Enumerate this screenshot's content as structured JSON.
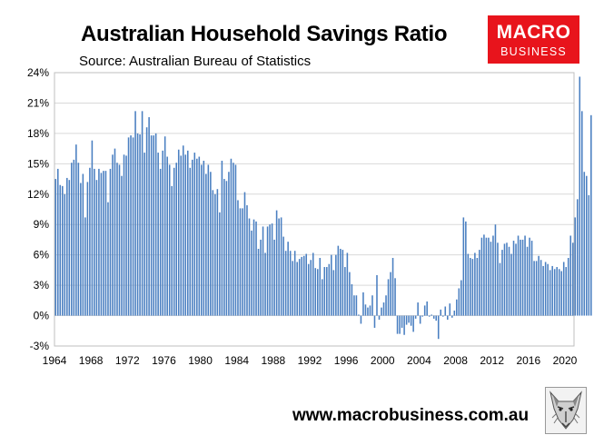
{
  "title": "Australian Household Savings Ratio",
  "subtitle": "Source: Australian Bureau of Statistics",
  "logo": {
    "line1": "MACRO",
    "line2": "BUSINESS",
    "color": "#e8141c"
  },
  "website": "www.macrobusiness.com.au",
  "mascot_icon": "wolf-icon",
  "colors": {
    "bar": "#4a7fc1",
    "grid": "#d9d9d9",
    "plot_border": "#bfbfbf"
  },
  "chart_data": {
    "type": "bar",
    "title": "Australian Household Savings Ratio",
    "xlabel": "",
    "ylabel": "",
    "grid": true,
    "x_start": 1964.0,
    "x_step": 0.25,
    "ylim": [
      -3,
      24
    ],
    "xlim": [
      1964.0,
      2021.0
    ],
    "y_ticks": [
      -3,
      0,
      3,
      6,
      9,
      12,
      15,
      18,
      21,
      24
    ],
    "y_tick_labels": [
      "-3%",
      "0%",
      "3%",
      "6%",
      "9%",
      "12%",
      "15%",
      "18%",
      "21%",
      "24%"
    ],
    "x_ticks": [
      1964,
      1968,
      1972,
      1976,
      1980,
      1984,
      1988,
      1992,
      1996,
      2000,
      2004,
      2008,
      2012,
      2016,
      2020
    ],
    "x_tick_labels": [
      "1964",
      "1968",
      "1972",
      "1976",
      "1980",
      "1984",
      "1988",
      "1992",
      "1996",
      "2000",
      "2004",
      "2008",
      "2012",
      "2016",
      "2020"
    ],
    "values": [
      13.5,
      14.5,
      12.9,
      12.8,
      12.0,
      13.6,
      13.4,
      15.1,
      15.4,
      16.9,
      15.1,
      13.1,
      14.0,
      9.7,
      13.2,
      14.6,
      17.3,
      14.5,
      13.4,
      14.5,
      14.1,
      14.3,
      14.3,
      11.2,
      14.5,
      15.9,
      16.5,
      15.1,
      14.9,
      13.8,
      15.9,
      15.8,
      17.6,
      17.8,
      17.6,
      20.2,
      18.0,
      17.9,
      20.2,
      16.1,
      18.6,
      19.6,
      17.8,
      17.8,
      18.0,
      16.1,
      14.5,
      16.3,
      17.7,
      15.7,
      14.9,
      12.8,
      14.6,
      15.1,
      16.4,
      15.8,
      16.8,
      15.9,
      16.3,
      14.6,
      15.4,
      16.1,
      15.5,
      15.7,
      14.9,
      15.3,
      14.0,
      14.9,
      14.2,
      12.4,
      12.0,
      12.5,
      10.2,
      15.3,
      13.5,
      13.3,
      14.2,
      15.5,
      15.1,
      14.9,
      11.4,
      10.6,
      10.6,
      12.2,
      10.9,
      9.6,
      8.4,
      9.5,
      9.3,
      6.6,
      7.5,
      8.8,
      6.2,
      8.8,
      9.0,
      9.1,
      7.5,
      10.4,
      9.6,
      9.7,
      7.8,
      6.4,
      7.3,
      6.4,
      5.4,
      6.4,
      5.3,
      5.6,
      5.8,
      5.9,
      6.1,
      5.1,
      5.5,
      6.2,
      4.7,
      4.6,
      5.7,
      3.6,
      4.8,
      4.8,
      5.1,
      6.0,
      4.5,
      6.0,
      6.9,
      6.6,
      6.5,
      4.8,
      6.2,
      4.3,
      3.1,
      2.0,
      2.0,
      0.1,
      -0.8,
      2.3,
      1.1,
      0.8,
      1.0,
      2.0,
      -1.2,
      4.0,
      -0.4,
      0.8,
      1.3,
      2.0,
      3.6,
      4.3,
      5.7,
      3.7,
      -1.8,
      -1.8,
      -1.2,
      -1.9,
      -0.9,
      -0.7,
      -1.0,
      -1.6,
      -0.3,
      1.3,
      -0.8,
      -0.1,
      1.0,
      1.4,
      -0.1,
      0.1,
      -0.3,
      -0.5,
      -2.3,
      0.6,
      -0.1,
      0.9,
      -0.4,
      1.2,
      -0.2,
      0.5,
      1.6,
      2.7,
      3.5,
      9.7,
      9.3,
      6.1,
      5.7,
      5.6,
      6.2,
      5.7,
      6.5,
      7.7,
      8.0,
      7.7,
      7.7,
      7.3,
      7.9,
      9.0,
      7.2,
      5.2,
      6.5,
      7.1,
      7.2,
      6.8,
      6.1,
      7.4,
      7.1,
      7.9,
      7.5,
      7.5,
      7.9,
      6.8,
      7.7,
      7.4,
      5.4,
      5.4,
      5.9,
      5.5,
      4.9,
      5.3,
      5.1,
      4.5,
      4.9,
      4.6,
      4.8,
      4.6,
      4.4,
      5.3,
      4.8,
      5.7,
      7.9,
      7.2,
      9.7,
      11.5,
      23.6,
      20.2,
      14.2,
      13.8,
      11.9,
      19.8
    ]
  }
}
